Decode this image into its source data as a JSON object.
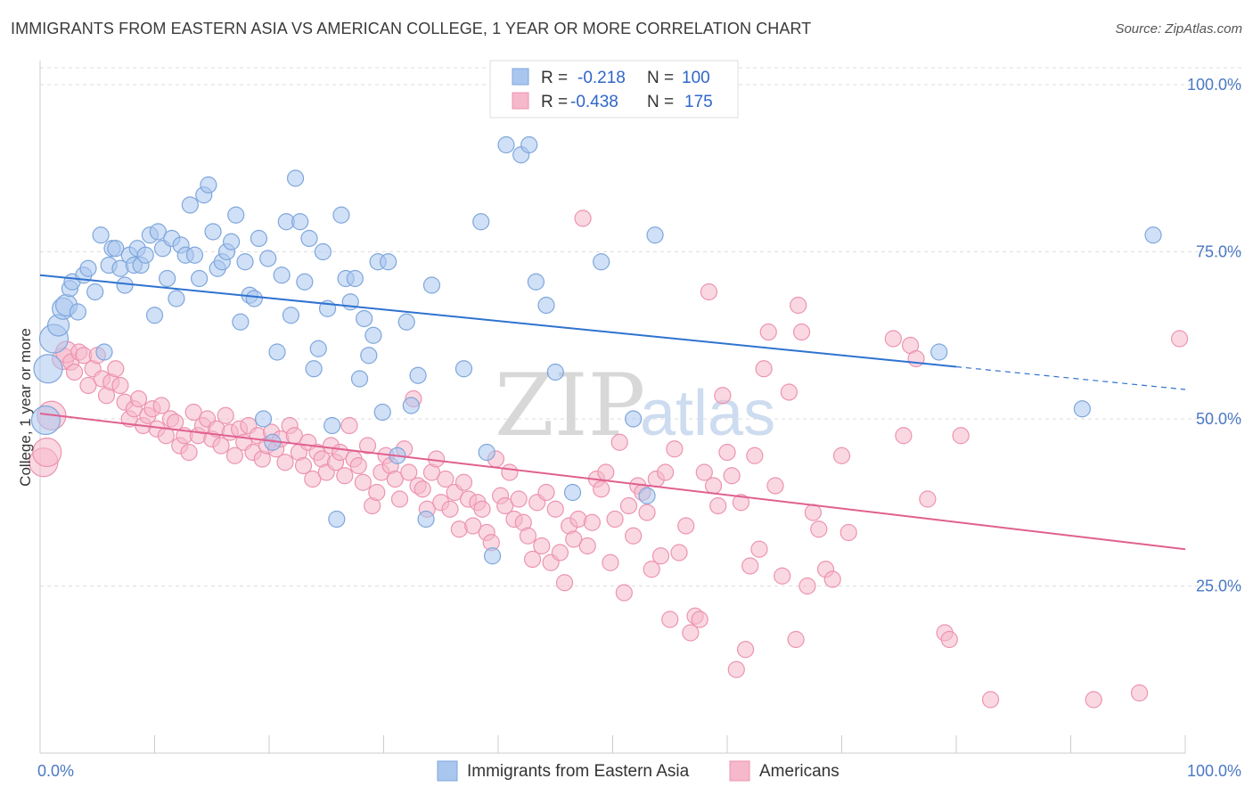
{
  "title": "IMMIGRANTS FROM EASTERN ASIA VS AMERICAN COLLEGE, 1 YEAR OR MORE CORRELATION CHART",
  "source": "Source: ZipAtlas.com",
  "watermark": {
    "zip": "ZIP",
    "atlas": "atlas"
  },
  "colors": {
    "blue_fill": "#a9c6ee",
    "blue_stroke": "#7ea6dc",
    "blue_line": "#2f72d0",
    "pink_fill": "#f6b8cb",
    "pink_stroke": "#ec93b0",
    "pink_line": "#e0608f",
    "tick_color": "#4a78c4",
    "grid": "#dddddd"
  },
  "chart_data": {
    "type": "scatter",
    "title": "IMMIGRANTS FROM EASTERN ASIA VS AMERICAN COLLEGE, 1 YEAR OR MORE CORRELATION CHART",
    "xlabel": "",
    "ylabel": "College, 1 year or more",
    "xlim": [
      0,
      100
    ],
    "ylim": [
      0,
      102
    ],
    "x_tick_labels": [
      "0.0%",
      "100.0%"
    ],
    "y_ticks": [
      25,
      50,
      75,
      100
    ],
    "y_tick_labels": [
      "25.0%",
      "50.0%",
      "75.0%",
      "100.0%"
    ],
    "grid": true,
    "legend_placement": "top-center",
    "stats": [
      {
        "r_label": "R =",
        "r": "-0.218",
        "n_label": "N =",
        "n": "100"
      },
      {
        "r_label": "R =",
        "r": "-0.438",
        "n_label": "N =",
        "n": "175"
      }
    ],
    "series": [
      {
        "name": "Immigrants from Eastern Asia",
        "color": "#a9c6ee",
        "trend": {
          "x0": 0,
          "y0": 71.5,
          "x1": 80,
          "y1": 57.8,
          "dashed_to_x": 100,
          "dashed_to_y": 54.4
        },
        "points": [
          [
            0.5,
            49.8
          ],
          [
            0.7,
            57.5
          ],
          [
            1.2,
            62
          ],
          [
            1.6,
            64
          ],
          [
            2,
            66.5
          ],
          [
            2.3,
            67
          ],
          [
            2.6,
            69.5
          ],
          [
            2.8,
            70.5
          ],
          [
            3.3,
            66
          ],
          [
            3.8,
            71.5
          ],
          [
            4.2,
            72.5
          ],
          [
            4.8,
            69
          ],
          [
            5.3,
            77.5
          ],
          [
            5.6,
            60
          ],
          [
            6,
            73
          ],
          [
            6.3,
            75.5
          ],
          [
            6.6,
            75.5
          ],
          [
            7,
            72.5
          ],
          [
            7.4,
            70
          ],
          [
            7.8,
            74.5
          ],
          [
            8.2,
            73
          ],
          [
            8.5,
            75.5
          ],
          [
            8.8,
            73
          ],
          [
            9.2,
            74.5
          ],
          [
            9.6,
            77.5
          ],
          [
            10,
            65.5
          ],
          [
            10.3,
            78
          ],
          [
            10.7,
            75.5
          ],
          [
            11.1,
            71
          ],
          [
            11.5,
            77
          ],
          [
            11.9,
            68
          ],
          [
            12.3,
            76
          ],
          [
            12.7,
            74.5
          ],
          [
            13.1,
            82
          ],
          [
            13.5,
            74.5
          ],
          [
            13.9,
            71
          ],
          [
            14.3,
            83.5
          ],
          [
            14.7,
            85
          ],
          [
            15.1,
            78
          ],
          [
            15.5,
            72.5
          ],
          [
            15.9,
            73.5
          ],
          [
            16.3,
            75
          ],
          [
            16.7,
            76.5
          ],
          [
            17.1,
            80.5
          ],
          [
            17.5,
            64.5
          ],
          [
            17.9,
            73.5
          ],
          [
            18.3,
            68.5
          ],
          [
            18.7,
            68
          ],
          [
            19.1,
            77
          ],
          [
            19.5,
            50
          ],
          [
            19.9,
            74
          ],
          [
            20.3,
            46.5
          ],
          [
            20.7,
            60
          ],
          [
            21.1,
            71.5
          ],
          [
            21.5,
            79.5
          ],
          [
            21.9,
            65.5
          ],
          [
            22.3,
            86
          ],
          [
            22.7,
            79.5
          ],
          [
            23.1,
            70.5
          ],
          [
            23.5,
            77
          ],
          [
            23.9,
            57.5
          ],
          [
            24.3,
            60.5
          ],
          [
            24.7,
            75
          ],
          [
            25.1,
            66.5
          ],
          [
            25.5,
            49
          ],
          [
            25.9,
            35
          ],
          [
            26.3,
            80.5
          ],
          [
            26.7,
            71
          ],
          [
            27.1,
            67.5
          ],
          [
            27.5,
            71
          ],
          [
            27.9,
            56
          ],
          [
            28.3,
            65
          ],
          [
            28.7,
            59.5
          ],
          [
            29.1,
            62.5
          ],
          [
            29.5,
            73.5
          ],
          [
            29.9,
            51
          ],
          [
            30.4,
            73.5
          ],
          [
            31.2,
            44.5
          ],
          [
            32,
            64.5
          ],
          [
            32.4,
            52
          ],
          [
            33,
            56.5
          ],
          [
            33.7,
            35
          ],
          [
            34.2,
            70
          ],
          [
            37,
            57.5
          ],
          [
            38.5,
            79.5
          ],
          [
            39,
            45
          ],
          [
            39.5,
            29.5
          ],
          [
            40.7,
            91
          ],
          [
            42,
            89.5
          ],
          [
            42.7,
            91
          ],
          [
            43.3,
            70.5
          ],
          [
            44.2,
            67
          ],
          [
            45,
            57
          ],
          [
            46.5,
            39
          ],
          [
            49,
            73.5
          ],
          [
            51.8,
            50
          ],
          [
            53,
            38.5
          ],
          [
            53.7,
            77.5
          ],
          [
            78.5,
            60
          ],
          [
            91,
            51.5
          ],
          [
            97.2,
            77.5
          ]
        ]
      },
      {
        "name": "Americans",
        "color": "#f6b8cb",
        "trend": {
          "x0": 0,
          "y0": 50.8,
          "x1": 100,
          "y1": 30.5
        },
        "points": [
          [
            0.3,
            43.5
          ],
          [
            0.6,
            45
          ],
          [
            1,
            50.5
          ],
          [
            2,
            59
          ],
          [
            2.3,
            60
          ],
          [
            2.7,
            58.5
          ],
          [
            3,
            57
          ],
          [
            3.4,
            60
          ],
          [
            3.8,
            59.5
          ],
          [
            4.2,
            55
          ],
          [
            4.6,
            57.5
          ],
          [
            5,
            59.5
          ],
          [
            5.4,
            56
          ],
          [
            5.8,
            53.5
          ],
          [
            6.2,
            55.5
          ],
          [
            6.6,
            57.5
          ],
          [
            7,
            55
          ],
          [
            7.4,
            52.5
          ],
          [
            7.8,
            50
          ],
          [
            8.2,
            51.5
          ],
          [
            8.6,
            53
          ],
          [
            9,
            49
          ],
          [
            9.4,
            50.5
          ],
          [
            9.8,
            51.5
          ],
          [
            10.2,
            48.5
          ],
          [
            10.6,
            52
          ],
          [
            11,
            47.5
          ],
          [
            11.4,
            50
          ],
          [
            11.8,
            49.5
          ],
          [
            12.2,
            46
          ],
          [
            12.6,
            47.5
          ],
          [
            13,
            45
          ],
          [
            13.4,
            51
          ],
          [
            13.8,
            47.5
          ],
          [
            14.2,
            49
          ],
          [
            14.6,
            50
          ],
          [
            15,
            47
          ],
          [
            15.4,
            48.5
          ],
          [
            15.8,
            46
          ],
          [
            16.2,
            50.5
          ],
          [
            16.6,
            48
          ],
          [
            17,
            44.5
          ],
          [
            17.4,
            48.5
          ],
          [
            17.8,
            46.5
          ],
          [
            18.2,
            49
          ],
          [
            18.6,
            45
          ],
          [
            19,
            47.5
          ],
          [
            19.4,
            44
          ],
          [
            19.8,
            46
          ],
          [
            20.2,
            48
          ],
          [
            20.6,
            45.5
          ],
          [
            21,
            47
          ],
          [
            21.4,
            43.5
          ],
          [
            21.8,
            49
          ],
          [
            22.2,
            47.5
          ],
          [
            22.6,
            45
          ],
          [
            23,
            43
          ],
          [
            23.4,
            46.5
          ],
          [
            23.8,
            41
          ],
          [
            24.2,
            45
          ],
          [
            24.6,
            44
          ],
          [
            25,
            42
          ],
          [
            25.4,
            46
          ],
          [
            25.8,
            43.5
          ],
          [
            26.2,
            45
          ],
          [
            26.6,
            41.5
          ],
          [
            27,
            49
          ],
          [
            27.4,
            44
          ],
          [
            27.8,
            43
          ],
          [
            28.2,
            40.5
          ],
          [
            28.6,
            46
          ],
          [
            29,
            37
          ],
          [
            29.4,
            39
          ],
          [
            29.8,
            42
          ],
          [
            30.2,
            44.5
          ],
          [
            30.6,
            43
          ],
          [
            31,
            41
          ],
          [
            31.4,
            38
          ],
          [
            31.8,
            45.5
          ],
          [
            32.2,
            42
          ],
          [
            32.6,
            53
          ],
          [
            33,
            40
          ],
          [
            33.4,
            39.5
          ],
          [
            33.8,
            36.5
          ],
          [
            34.2,
            42
          ],
          [
            34.6,
            44
          ],
          [
            35,
            37.5
          ],
          [
            35.4,
            41
          ],
          [
            35.8,
            36.5
          ],
          [
            36.2,
            39
          ],
          [
            36.6,
            33.5
          ],
          [
            37,
            40.5
          ],
          [
            37.4,
            38
          ],
          [
            37.8,
            34
          ],
          [
            38.2,
            37.5
          ],
          [
            38.6,
            36.5
          ],
          [
            39,
            33
          ],
          [
            39.4,
            31.5
          ],
          [
            39.8,
            44
          ],
          [
            40.2,
            38.5
          ],
          [
            40.6,
            37
          ],
          [
            41,
            42
          ],
          [
            41.4,
            35
          ],
          [
            41.8,
            38
          ],
          [
            42.2,
            34.5
          ],
          [
            42.6,
            32.5
          ],
          [
            43,
            29
          ],
          [
            43.4,
            37.5
          ],
          [
            43.8,
            31
          ],
          [
            44.2,
            39
          ],
          [
            44.6,
            28.5
          ],
          [
            45,
            36.5
          ],
          [
            45.4,
            30
          ],
          [
            45.8,
            25.5
          ],
          [
            46.2,
            34
          ],
          [
            46.6,
            32
          ],
          [
            47,
            35
          ],
          [
            47.4,
            80
          ],
          [
            47.8,
            31
          ],
          [
            48.2,
            34.5
          ],
          [
            48.6,
            41
          ],
          [
            49,
            39.5
          ],
          [
            49.4,
            42
          ],
          [
            49.8,
            28.5
          ],
          [
            50.2,
            35
          ],
          [
            50.6,
            46.5
          ],
          [
            51,
            24
          ],
          [
            51.4,
            37
          ],
          [
            51.8,
            32.5
          ],
          [
            52.2,
            40
          ],
          [
            52.6,
            39
          ],
          [
            53,
            36
          ],
          [
            53.4,
            27.5
          ],
          [
            53.8,
            41
          ],
          [
            54.2,
            29.5
          ],
          [
            54.6,
            42
          ],
          [
            55,
            20
          ],
          [
            55.4,
            45.5
          ],
          [
            55.8,
            30
          ],
          [
            56.4,
            34
          ],
          [
            56.8,
            18
          ],
          [
            57.2,
            20.5
          ],
          [
            57.6,
            20
          ],
          [
            58,
            42
          ],
          [
            58.4,
            69
          ],
          [
            58.8,
            40
          ],
          [
            59.2,
            37
          ],
          [
            59.6,
            53.5
          ],
          [
            60,
            45
          ],
          [
            60.4,
            41.5
          ],
          [
            60.8,
            12.5
          ],
          [
            61.2,
            37.5
          ],
          [
            61.6,
            15.5
          ],
          [
            62,
            28
          ],
          [
            62.4,
            44.5
          ],
          [
            62.8,
            30.5
          ],
          [
            63.2,
            57.5
          ],
          [
            63.6,
            63
          ],
          [
            64.2,
            40
          ],
          [
            64.8,
            26.5
          ],
          [
            65.4,
            54
          ],
          [
            66,
            17
          ],
          [
            66.2,
            67
          ],
          [
            66.5,
            63
          ],
          [
            67,
            25
          ],
          [
            67.5,
            36
          ],
          [
            68,
            33.5
          ],
          [
            68.6,
            27.5
          ],
          [
            69.2,
            26
          ],
          [
            70,
            44.5
          ],
          [
            70.6,
            33
          ],
          [
            74.5,
            62
          ],
          [
            75.4,
            47.5
          ],
          [
            76,
            61
          ],
          [
            76.5,
            59
          ],
          [
            77.5,
            38
          ],
          [
            79,
            18
          ],
          [
            79.4,
            17
          ],
          [
            80.4,
            47.5
          ],
          [
            83,
            8
          ],
          [
            92,
            8
          ],
          [
            96,
            9
          ],
          [
            99.5,
            62
          ]
        ]
      }
    ]
  },
  "bottom_legend": [
    "Immigrants from Eastern Asia",
    "Americans"
  ]
}
